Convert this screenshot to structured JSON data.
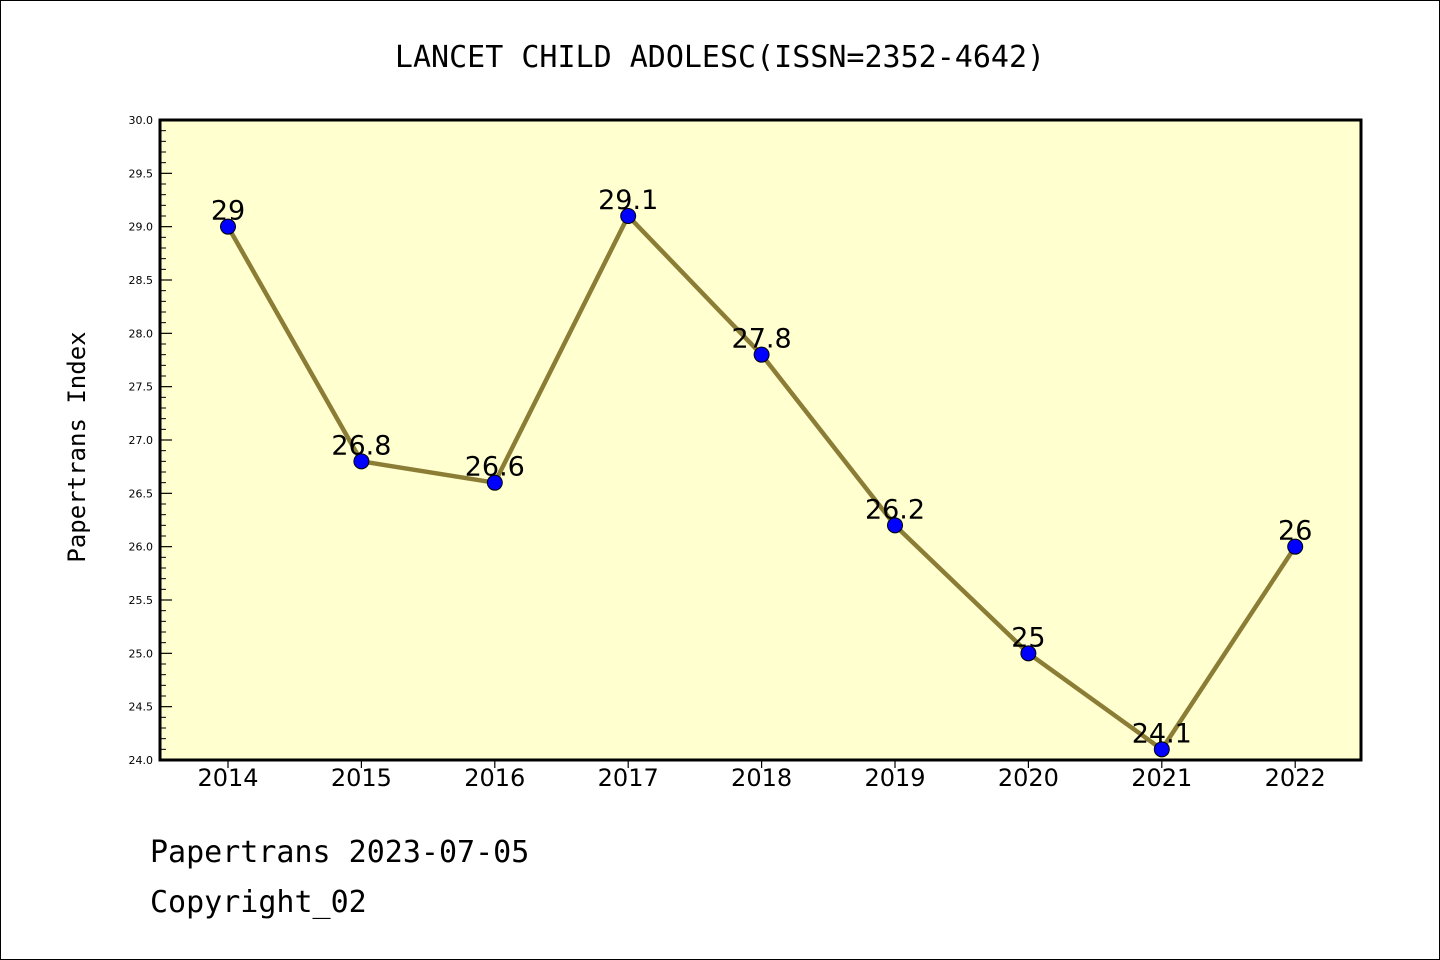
{
  "chart_data": {
    "type": "line",
    "title": "LANCET CHILD ADOLESC(ISSN=2352-4642)",
    "ylabel": "Papertrans Index",
    "xlabel": "",
    "categories": [
      "2014",
      "2015",
      "2016",
      "2017",
      "2018",
      "2019",
      "2020",
      "2021",
      "2022"
    ],
    "series": [
      {
        "values": [
          29,
          26.8,
          26.6,
          29.1,
          27.8,
          26.2,
          25,
          24.1,
          26
        ]
      }
    ],
    "data_labels": [
      "29",
      "26.8",
      "26.6",
      "29.1",
      "27.8",
      "26.2",
      "25",
      "24.1",
      "26"
    ],
    "ylim": [
      24.0,
      30.0
    ],
    "yticks": [
      "24.0",
      "24.5",
      "25.0",
      "25.5",
      "26.0",
      "26.5",
      "27.0",
      "27.5",
      "28.0",
      "28.5",
      "29.0",
      "29.5",
      "30.0"
    ],
    "grid": false,
    "colors": {
      "plot_background": "#ffffd0",
      "line": "#8b7d35",
      "marker": "#0000ff"
    }
  },
  "footer": {
    "source": "Papertrans 2023-07-05",
    "copyright": "Copyright_02"
  }
}
